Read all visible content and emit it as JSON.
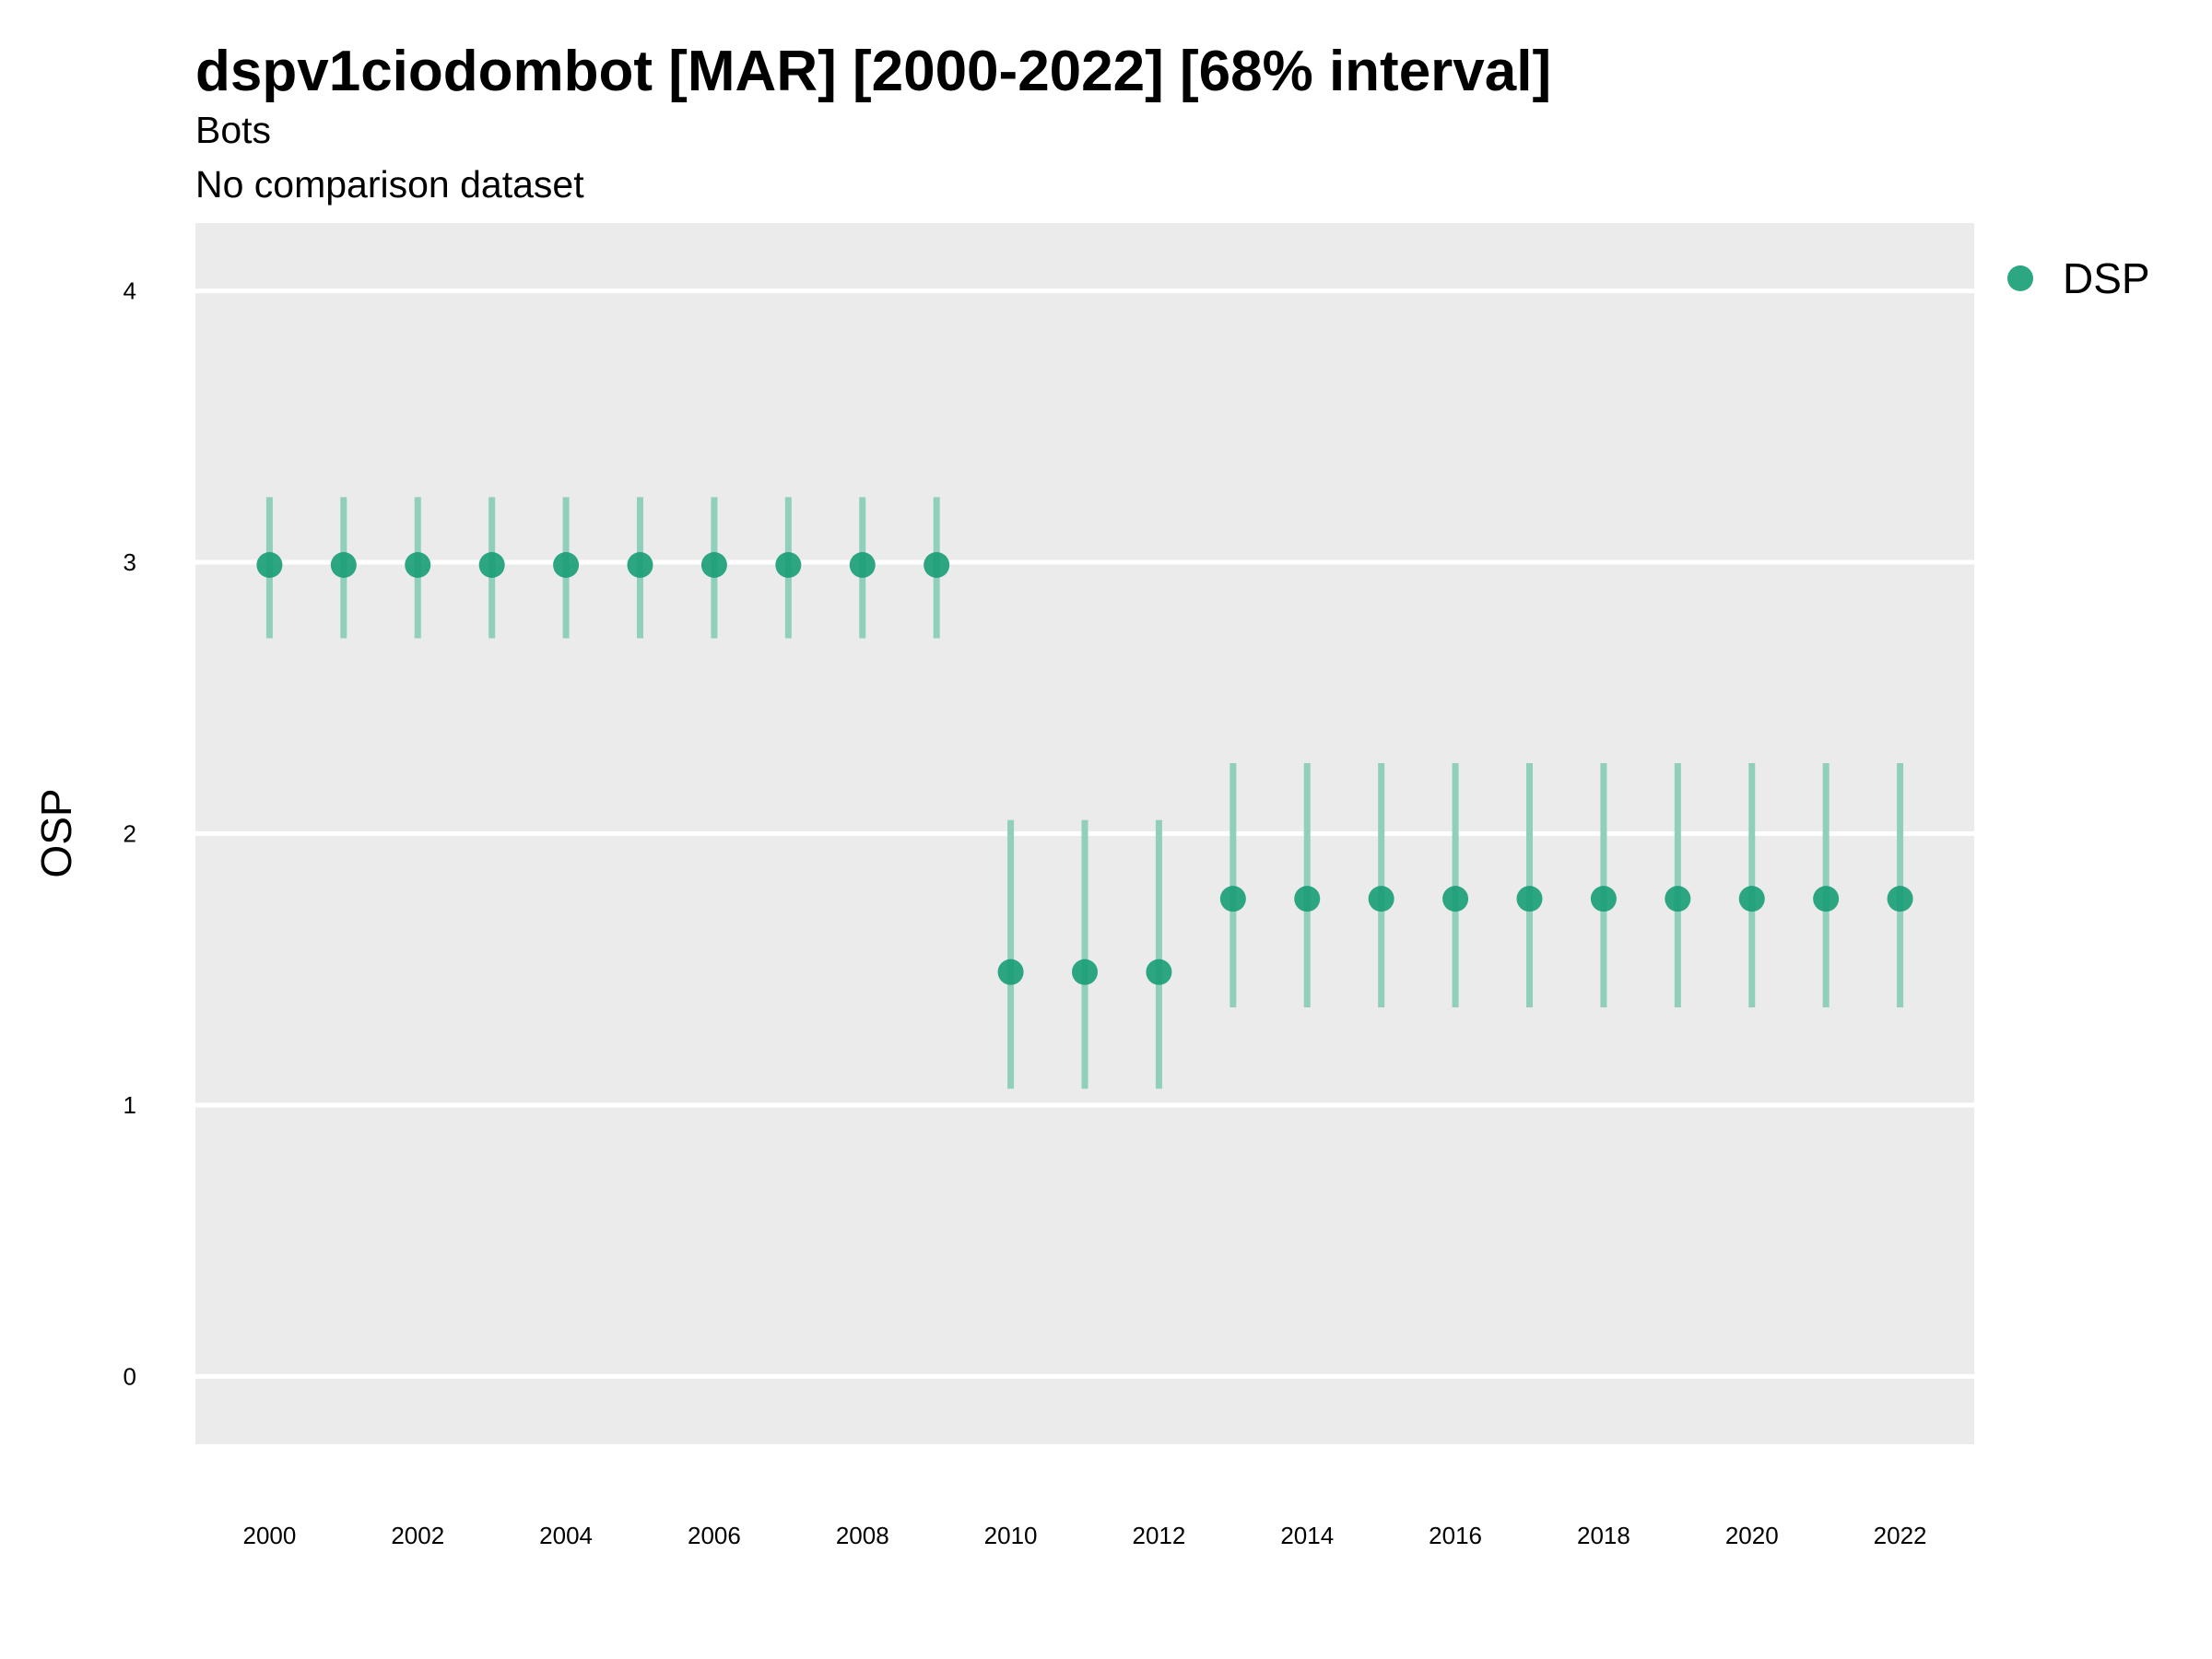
{
  "chart_data": {
    "type": "scatter",
    "title": "dspv1ciodombot [MAR] [2000-2022] [68% interval]",
    "subtitle_lines": [
      "Bots",
      "No comparison dataset"
    ],
    "xlabel": "",
    "ylabel": "OSP",
    "xlim": [
      1999,
      2023
    ],
    "ylim": [
      -0.25,
      4.25
    ],
    "x_ticks": [
      2000,
      2002,
      2004,
      2006,
      2008,
      2010,
      2012,
      2014,
      2016,
      2018,
      2020,
      2022
    ],
    "y_ticks": [
      0,
      1,
      2,
      3,
      4
    ],
    "grid": true,
    "legend": "right",
    "colors": {
      "point": "#1b9e77",
      "interval": "#8fcfbb",
      "panel": "#ebebeb",
      "grid": "#ffffff"
    },
    "series": [
      {
        "name": "DSP",
        "x": [
          2000,
          2001,
          2002,
          2003,
          2004,
          2005,
          2006,
          2007,
          2008,
          2009,
          2010,
          2011,
          2012,
          2013,
          2014,
          2015,
          2016,
          2017,
          2018,
          2019,
          2020,
          2021,
          2022
        ],
        "y": [
          2.99,
          2.99,
          2.99,
          2.99,
          2.99,
          2.99,
          2.99,
          2.99,
          2.99,
          2.99,
          1.49,
          1.49,
          1.49,
          1.76,
          1.76,
          1.76,
          1.76,
          1.76,
          1.76,
          1.76,
          1.76,
          1.76,
          1.76
        ],
        "lower": [
          2.72,
          2.72,
          2.72,
          2.72,
          2.72,
          2.72,
          2.72,
          2.72,
          2.72,
          2.72,
          1.06,
          1.06,
          1.06,
          1.36,
          1.36,
          1.36,
          1.36,
          1.36,
          1.36,
          1.36,
          1.36,
          1.36,
          1.36
        ],
        "upper": [
          3.24,
          3.24,
          3.24,
          3.24,
          3.24,
          3.24,
          3.24,
          3.24,
          3.24,
          3.24,
          2.05,
          2.05,
          2.05,
          2.26,
          2.26,
          2.26,
          2.26,
          2.26,
          2.26,
          2.26,
          2.26,
          2.26,
          2.26
        ]
      }
    ]
  }
}
